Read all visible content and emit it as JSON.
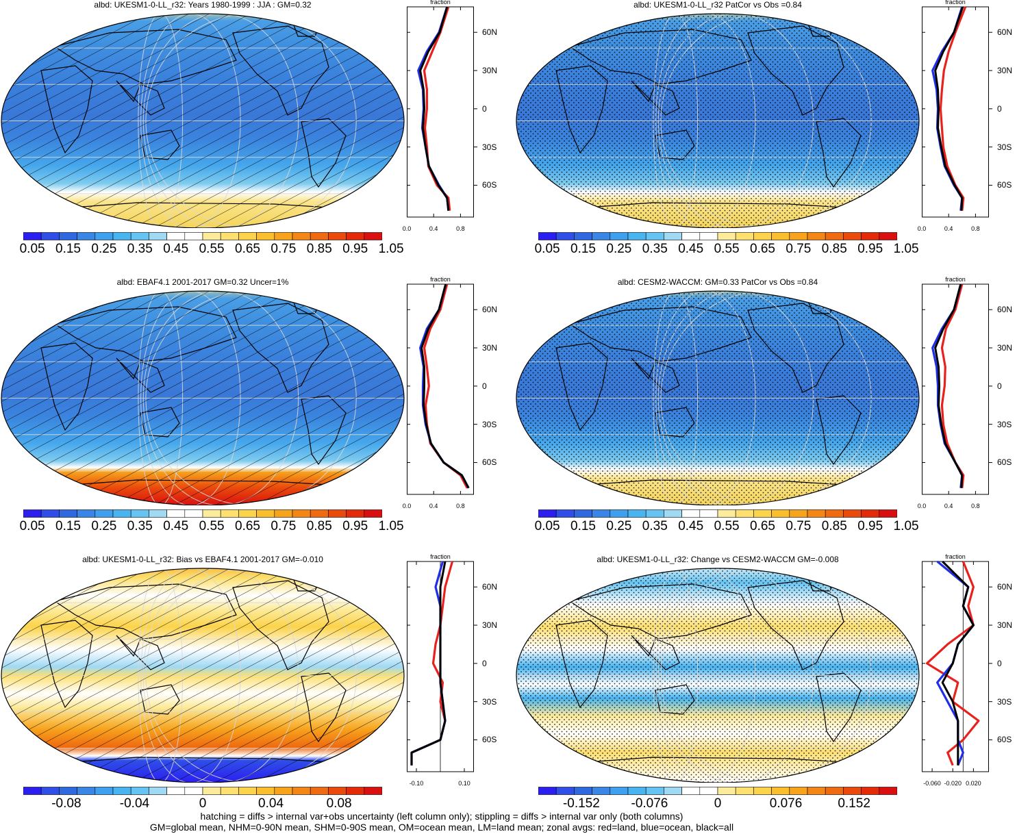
{
  "panels": [
    {
      "id": "p1",
      "title": "albd: UKESM1-0-LL_r32: Years 1980-1999 : JJA : GM=0.32",
      "kind": "abs",
      "mask": "hatch",
      "zonal_ticks": [
        "0.0",
        "0.4",
        "0.8"
      ],
      "zonal_xlim": [
        0,
        1.0
      ]
    },
    {
      "id": "p2",
      "title": "albd: UKESM1-0-LL_r32 PatCor vs Obs =0.84",
      "kind": "abs",
      "mask": "stipple",
      "zonal_ticks": [
        "0.0",
        "0.4",
        "0.8"
      ],
      "zonal_xlim": [
        0,
        1.0
      ]
    },
    {
      "id": "p3",
      "title": "albd: EBAF4.1 2001-2017 GM=0.32 Uncer=1%",
      "kind": "obs",
      "mask": "hatch",
      "zonal_ticks": [
        "0.0",
        "0.4",
        "0.8"
      ],
      "zonal_xlim": [
        0,
        1.0
      ]
    },
    {
      "id": "p4",
      "title": "albd: CESM2-WACCM: GM=0.33 PatCor vs Obs =0.84",
      "kind": "abs",
      "mask": "stipple",
      "zonal_ticks": [
        "0.0",
        "0.4",
        "0.8"
      ],
      "zonal_xlim": [
        0,
        1.0
      ]
    },
    {
      "id": "p5",
      "title": "albd: UKESM1-0-LL_r32: Bias vs EBAF4.1 2001-2017 GM=-0.010",
      "kind": "bias",
      "mask": "hatch",
      "zonal_ticks": [
        "-0.10",
        "0.10"
      ],
      "zonal_xlim": [
        -0.14,
        0.14
      ]
    },
    {
      "id": "p6",
      "title": "albd: UKESM1-0-LL_r32: Change vs CESM2-WACCM GM=-0.008",
      "kind": "change",
      "mask": "stipple",
      "zonal_ticks": [
        "-0.060",
        "-0.020",
        "0.020"
      ],
      "zonal_xlim": [
        -0.08,
        0.05
      ]
    }
  ],
  "zonal_header": "fraction",
  "lat_labels": [
    "60N",
    "30N",
    "0",
    "30S",
    "60S"
  ],
  "colorbars": {
    "abs_labels": [
      "0.05",
      "0.15",
      "0.25",
      "0.35",
      "0.45",
      "0.55",
      "0.65",
      "0.75",
      "0.85",
      "0.95",
      "1.05"
    ],
    "bias_labels": [
      "-0.08",
      "-0.04",
      "0",
      "0.04",
      "0.08"
    ],
    "change_labels": [
      "-0.152",
      "-0.076",
      "0",
      "0.076",
      "0.152"
    ],
    "colors": [
      "#2b1ff0",
      "#2f4fe8",
      "#3068e0",
      "#3a86e6",
      "#3ea0ee",
      "#48b4f0",
      "#66c4f2",
      "#9fd9f4",
      "#ffffff",
      "#ffffff",
      "#fdeb9c",
      "#fde070",
      "#fcd34a",
      "#fbbf2e",
      "#f7a31c",
      "#f38614",
      "#ef6a10",
      "#ea4b0c",
      "#e52a0a",
      "#d91010"
    ]
  },
  "chart_data": [
    {
      "type": "heatmap",
      "title": "albd: UKESM1-0-LL_r32: Years 1980-1999 : JJA : GM=0.32",
      "zonal": {
        "xlabel": "fraction",
        "xlim": [
          0,
          1.0
        ],
        "lat": [
          80,
          60,
          45,
          30,
          15,
          0,
          -15,
          -30,
          -45,
          -60,
          -70,
          -80
        ],
        "series": [
          {
            "name": "red=land",
            "values": [
              0.62,
              0.5,
              0.38,
              0.26,
              0.3,
              0.3,
              0.27,
              0.3,
              0.32,
              0.45,
              0.62,
              0.64
            ]
          },
          {
            "name": "blue=ocean",
            "values": [
              0.6,
              0.48,
              0.3,
              0.17,
              0.24,
              0.25,
              0.23,
              0.28,
              0.33,
              0.48,
              0.6,
              0.62
            ]
          },
          {
            "name": "black=all",
            "values": [
              0.6,
              0.49,
              0.32,
              0.2,
              0.25,
              0.26,
              0.24,
              0.28,
              0.33,
              0.47,
              0.6,
              0.62
            ]
          }
        ]
      }
    },
    {
      "type": "heatmap",
      "title": "albd: UKESM1-0-LL_r32 PatCor vs Obs =0.84",
      "zonal": {
        "xlabel": "fraction",
        "xlim": [
          0,
          1.0
        ],
        "lat": [
          80,
          60,
          45,
          30,
          15,
          0,
          -15,
          -30,
          -45,
          -60,
          -70,
          -80
        ],
        "series": [
          {
            "name": "red=land",
            "values": [
              0.65,
              0.5,
              0.4,
              0.33,
              0.3,
              0.28,
              0.3,
              0.32,
              0.38,
              0.5,
              0.62,
              0.6
            ]
          },
          {
            "name": "blue=ocean",
            "values": [
              0.6,
              0.48,
              0.3,
              0.16,
              0.22,
              0.24,
              0.23,
              0.28,
              0.34,
              0.48,
              0.6,
              0.58
            ]
          },
          {
            "name": "black=all",
            "values": [
              0.61,
              0.48,
              0.32,
              0.2,
              0.24,
              0.25,
              0.24,
              0.29,
              0.35,
              0.49,
              0.6,
              0.59
            ]
          }
        ]
      }
    },
    {
      "type": "heatmap",
      "title": "albd: EBAF4.1 2001-2017 GM=0.32 Uncer=1%",
      "zonal": {
        "xlabel": "fraction",
        "xlim": [
          0,
          1.0
        ],
        "lat": [
          80,
          60,
          45,
          30,
          15,
          0,
          -15,
          -30,
          -45,
          -60,
          -70,
          -80
        ],
        "series": [
          {
            "name": "red=land",
            "values": [
              0.6,
              0.5,
              0.35,
              0.26,
              0.3,
              0.33,
              0.28,
              0.3,
              0.35,
              0.55,
              0.8,
              0.9
            ]
          },
          {
            "name": "blue=ocean",
            "values": [
              0.58,
              0.48,
              0.3,
              0.2,
              0.25,
              0.24,
              0.24,
              0.28,
              0.36,
              0.55,
              0.82,
              0.92
            ]
          },
          {
            "name": "black=all",
            "values": [
              0.58,
              0.48,
              0.32,
              0.22,
              0.26,
              0.26,
              0.25,
              0.29,
              0.36,
              0.55,
              0.82,
              0.92
            ]
          }
        ]
      }
    },
    {
      "type": "heatmap",
      "title": "albd: CESM2-WACCM: GM=0.33 PatCor vs Obs =0.84",
      "zonal": {
        "xlabel": "fraction",
        "xlim": [
          0,
          1.0
        ],
        "lat": [
          80,
          60,
          45,
          30,
          15,
          0,
          -15,
          -30,
          -45,
          -60,
          -70,
          -80
        ],
        "series": [
          {
            "name": "red=land",
            "values": [
              0.6,
              0.5,
              0.36,
              0.3,
              0.35,
              0.34,
              0.3,
              0.32,
              0.38,
              0.5,
              0.62,
              0.6
            ]
          },
          {
            "name": "blue=ocean",
            "values": [
              0.58,
              0.48,
              0.3,
              0.16,
              0.22,
              0.24,
              0.24,
              0.28,
              0.34,
              0.5,
              0.6,
              0.58
            ]
          },
          {
            "name": "black=all",
            "values": [
              0.58,
              0.48,
              0.32,
              0.2,
              0.25,
              0.26,
              0.25,
              0.29,
              0.35,
              0.5,
              0.6,
              0.59
            ]
          }
        ]
      }
    },
    {
      "type": "heatmap",
      "title": "albd: UKESM1-0-LL_r32: Bias vs EBAF4.1 2001-2017 GM=-0.010",
      "zonal": {
        "xlabel": "fraction",
        "xlim": [
          -0.14,
          0.14
        ],
        "lat": [
          80,
          60,
          45,
          30,
          15,
          0,
          -15,
          -30,
          -45,
          -60,
          -70,
          -80
        ],
        "series": [
          {
            "name": "red=land",
            "values": [
              0.05,
              0.02,
              0.01,
              0.0,
              -0.02,
              -0.03,
              0.01,
              0.0,
              0.02,
              0.0,
              -0.12,
              -0.12
            ]
          },
          {
            "name": "blue=ocean",
            "values": [
              0.01,
              -0.02,
              0.0,
              0.0,
              0.0,
              0.0,
              0.0,
              0.01,
              0.02,
              0.0,
              -0.12,
              -0.12
            ]
          },
          {
            "name": "black=all",
            "values": [
              0.02,
              0.0,
              0.0,
              0.0,
              0.0,
              0.0,
              0.0,
              0.01,
              0.02,
              0.0,
              -0.12,
              -0.12
            ]
          }
        ]
      }
    },
    {
      "type": "heatmap",
      "title": "albd: UKESM1-0-LL_r32: Change vs CESM2-WACCM GM=-0.008",
      "zonal": {
        "xlabel": "fraction",
        "xlim": [
          -0.08,
          0.05
        ],
        "lat": [
          80,
          60,
          45,
          30,
          15,
          0,
          -15,
          -30,
          -45,
          -60,
          -70,
          -80
        ],
        "series": [
          {
            "name": "red=land",
            "values": [
              0.0,
              0.02,
              0.01,
              0.02,
              -0.03,
              -0.07,
              -0.01,
              -0.02,
              0.03,
              0.0,
              -0.03,
              -0.02
            ]
          },
          {
            "name": "blue=ocean",
            "values": [
              -0.05,
              0.01,
              0.0,
              0.02,
              -0.01,
              -0.02,
              -0.05,
              -0.03,
              -0.01,
              -0.01,
              0.0,
              -0.01
            ]
          },
          {
            "name": "black=all",
            "values": [
              -0.04,
              0.01,
              0.0,
              0.02,
              -0.01,
              -0.02,
              -0.04,
              -0.02,
              -0.01,
              -0.01,
              -0.01,
              -0.01
            ]
          }
        ]
      }
    }
  ],
  "footer": {
    "line1": "hatching = diffs > internal var+obs uncertainty (left column only); stippling = diffs > internal var only (both columns)",
    "line2": "GM=global mean, NHM=0-90N mean, SHM=0-90S mean, OM=ocean mean, LM=land mean; zonal avgs: red=land, blue=ocean, black=all"
  }
}
